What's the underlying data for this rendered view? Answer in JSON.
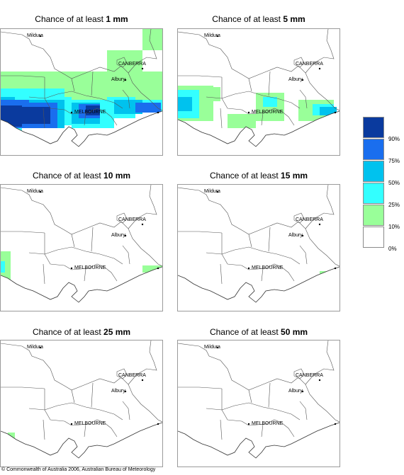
{
  "title_prefix": "Chance of at least",
  "panels": [
    {
      "threshold": "1 mm"
    },
    {
      "threshold": "5 mm"
    },
    {
      "threshold": "10 mm"
    },
    {
      "threshold": "15 mm"
    },
    {
      "threshold": "25 mm"
    },
    {
      "threshold": "50 mm"
    }
  ],
  "place_labels": {
    "mildura": "Mildura",
    "canberra": "CANBERRA",
    "albury": "Albury",
    "melbourne": "MELBOURNE"
  },
  "legend": {
    "labels": [
      "90%",
      "75%",
      "50%",
      "25%",
      "10%",
      "0%"
    ],
    "colors": [
      "#0a3a9e",
      "#1a6eee",
      "#00c2ee",
      "#33ffff",
      "#99ff99",
      "#ffffff"
    ]
  },
  "copyright": "© Commonwealth of Australia 2006, Australian Bureau of Meteorology"
}
